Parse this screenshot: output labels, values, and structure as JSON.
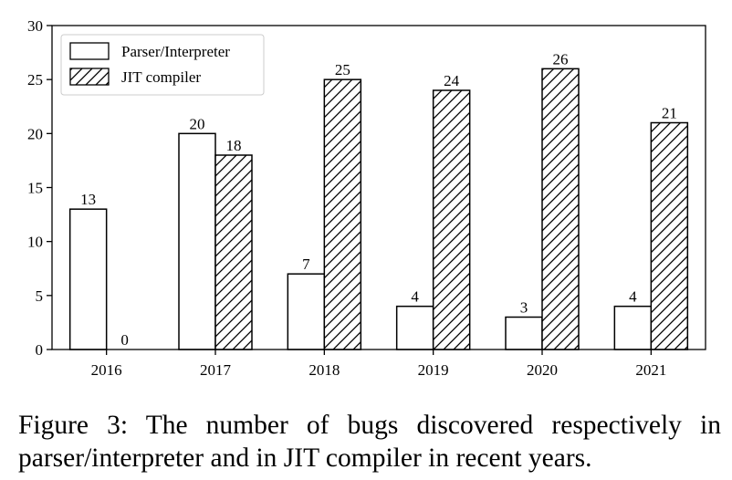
{
  "caption": "Figure 3: The number of bugs discovered respectively in parser/interpreter and in JIT compiler in recent years.",
  "chart_data": {
    "type": "bar",
    "title": "",
    "xlabel": "",
    "ylabel": "",
    "categories": [
      "2016",
      "2017",
      "2018",
      "2019",
      "2020",
      "2021"
    ],
    "series": [
      {
        "name": "Parser/Interpreter",
        "values": [
          13,
          20,
          7,
          4,
          3,
          4
        ],
        "fill": "white",
        "hatch": false
      },
      {
        "name": "JIT compiler",
        "values": [
          0,
          18,
          25,
          24,
          26,
          21
        ],
        "fill": "white",
        "hatch": true
      }
    ],
    "ylim": [
      0,
      30
    ],
    "yticks": [
      0,
      5,
      10,
      15,
      20,
      25,
      30
    ],
    "grid": false,
    "legend_position": "top-left",
    "data_labels": true,
    "colors": {
      "edge": "#000000",
      "fill": "#ffffff",
      "hatch": "#000000"
    }
  }
}
